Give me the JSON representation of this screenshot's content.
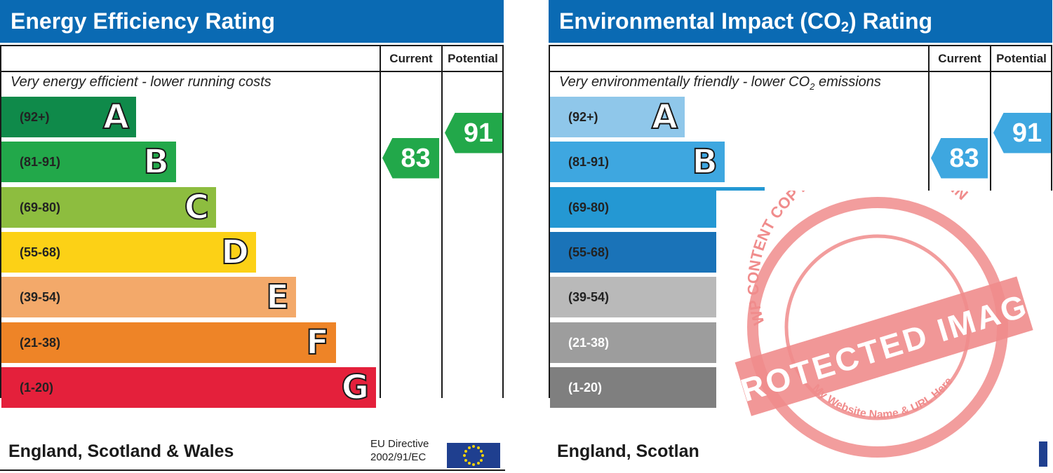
{
  "energy": {
    "title": "Energy Efficiency Rating",
    "col_current": "Current",
    "col_potential": "Potential",
    "top_text": "Very energy efficient - lower running costs",
    "footer": "England, Scotland & Wales",
    "eu_line1": "EU Directive",
    "eu_line2": "2002/91/EC",
    "bands": [
      {
        "range": "(92+)",
        "letter": "A",
        "color": "#0f8a4a"
      },
      {
        "range": "(81-91)",
        "letter": "B",
        "color": "#22a84a"
      },
      {
        "range": "(69-80)",
        "letter": "C",
        "color": "#8dbd3f"
      },
      {
        "range": "(55-68)",
        "letter": "D",
        "color": "#fcd116"
      },
      {
        "range": "(39-54)",
        "letter": "E",
        "color": "#f3a96a"
      },
      {
        "range": "(21-38)",
        "letter": "F",
        "color": "#ee8427"
      },
      {
        "range": "(1-20)",
        "letter": "G",
        "color": "#e4203b"
      }
    ],
    "current": {
      "value": "83",
      "color": "#22a84a"
    },
    "potential": {
      "value": "91",
      "color": "#22a84a"
    }
  },
  "environment": {
    "title_part1": "Environmental Impact (CO",
    "title_sub": "2",
    "title_part2": ") Rating",
    "col_current": "Current",
    "col_potential": "Potential",
    "top_text_part1": "Very environmentally friendly - lower CO",
    "top_text_sub": "2",
    "top_text_part2": " emissions",
    "footer": "England, Scotlan",
    "bands": [
      {
        "range": "(92+)",
        "letter": "A",
        "color": "#8fc7ea"
      },
      {
        "range": "(81-91)",
        "letter": "B",
        "color": "#3ea7e0"
      },
      {
        "range": "(69-80)",
        "letter": "",
        "color": "#2498d3"
      },
      {
        "range": "(55-68)",
        "letter": "",
        "color": "#1a73b8"
      },
      {
        "range": "(39-54)",
        "letter": "",
        "color": "#b9b9b9"
      },
      {
        "range": "(21-38)",
        "letter": "",
        "color": "#9d9d9d"
      },
      {
        "range": "(1-20)",
        "letter": "",
        "color": "#7f7f7f"
      }
    ],
    "current": {
      "value": "83",
      "color": "#3ea7e0"
    },
    "potential": {
      "value": "91",
      "color": "#3ea7e0"
    }
  },
  "watermark": {
    "main": "PROTECTED IMAGE",
    "ring": "WP CONTENT COPY PROTECTION PLUGIN",
    "bottom": "My Website Name & URL Here",
    "color": "#f08c8c"
  },
  "chart_data": [
    {
      "type": "bar",
      "title": "Energy Efficiency Rating",
      "categories": [
        "(92+)",
        "(81-91)",
        "(69-80)",
        "(55-68)",
        "(39-54)",
        "(21-38)",
        "(1-20)"
      ],
      "letters": [
        "A",
        "B",
        "C",
        "D",
        "E",
        "F",
        "G"
      ],
      "current": 83,
      "potential": 91
    },
    {
      "type": "bar",
      "title": "Environmental Impact (CO2) Rating",
      "categories": [
        "(92+)",
        "(81-91)",
        "(69-80)",
        "(55-68)",
        "(39-54)",
        "(21-38)",
        "(1-20)"
      ],
      "letters": [
        "A",
        "B",
        "",
        "",
        "",
        "",
        ""
      ],
      "current": 83,
      "potential": 91
    }
  ]
}
